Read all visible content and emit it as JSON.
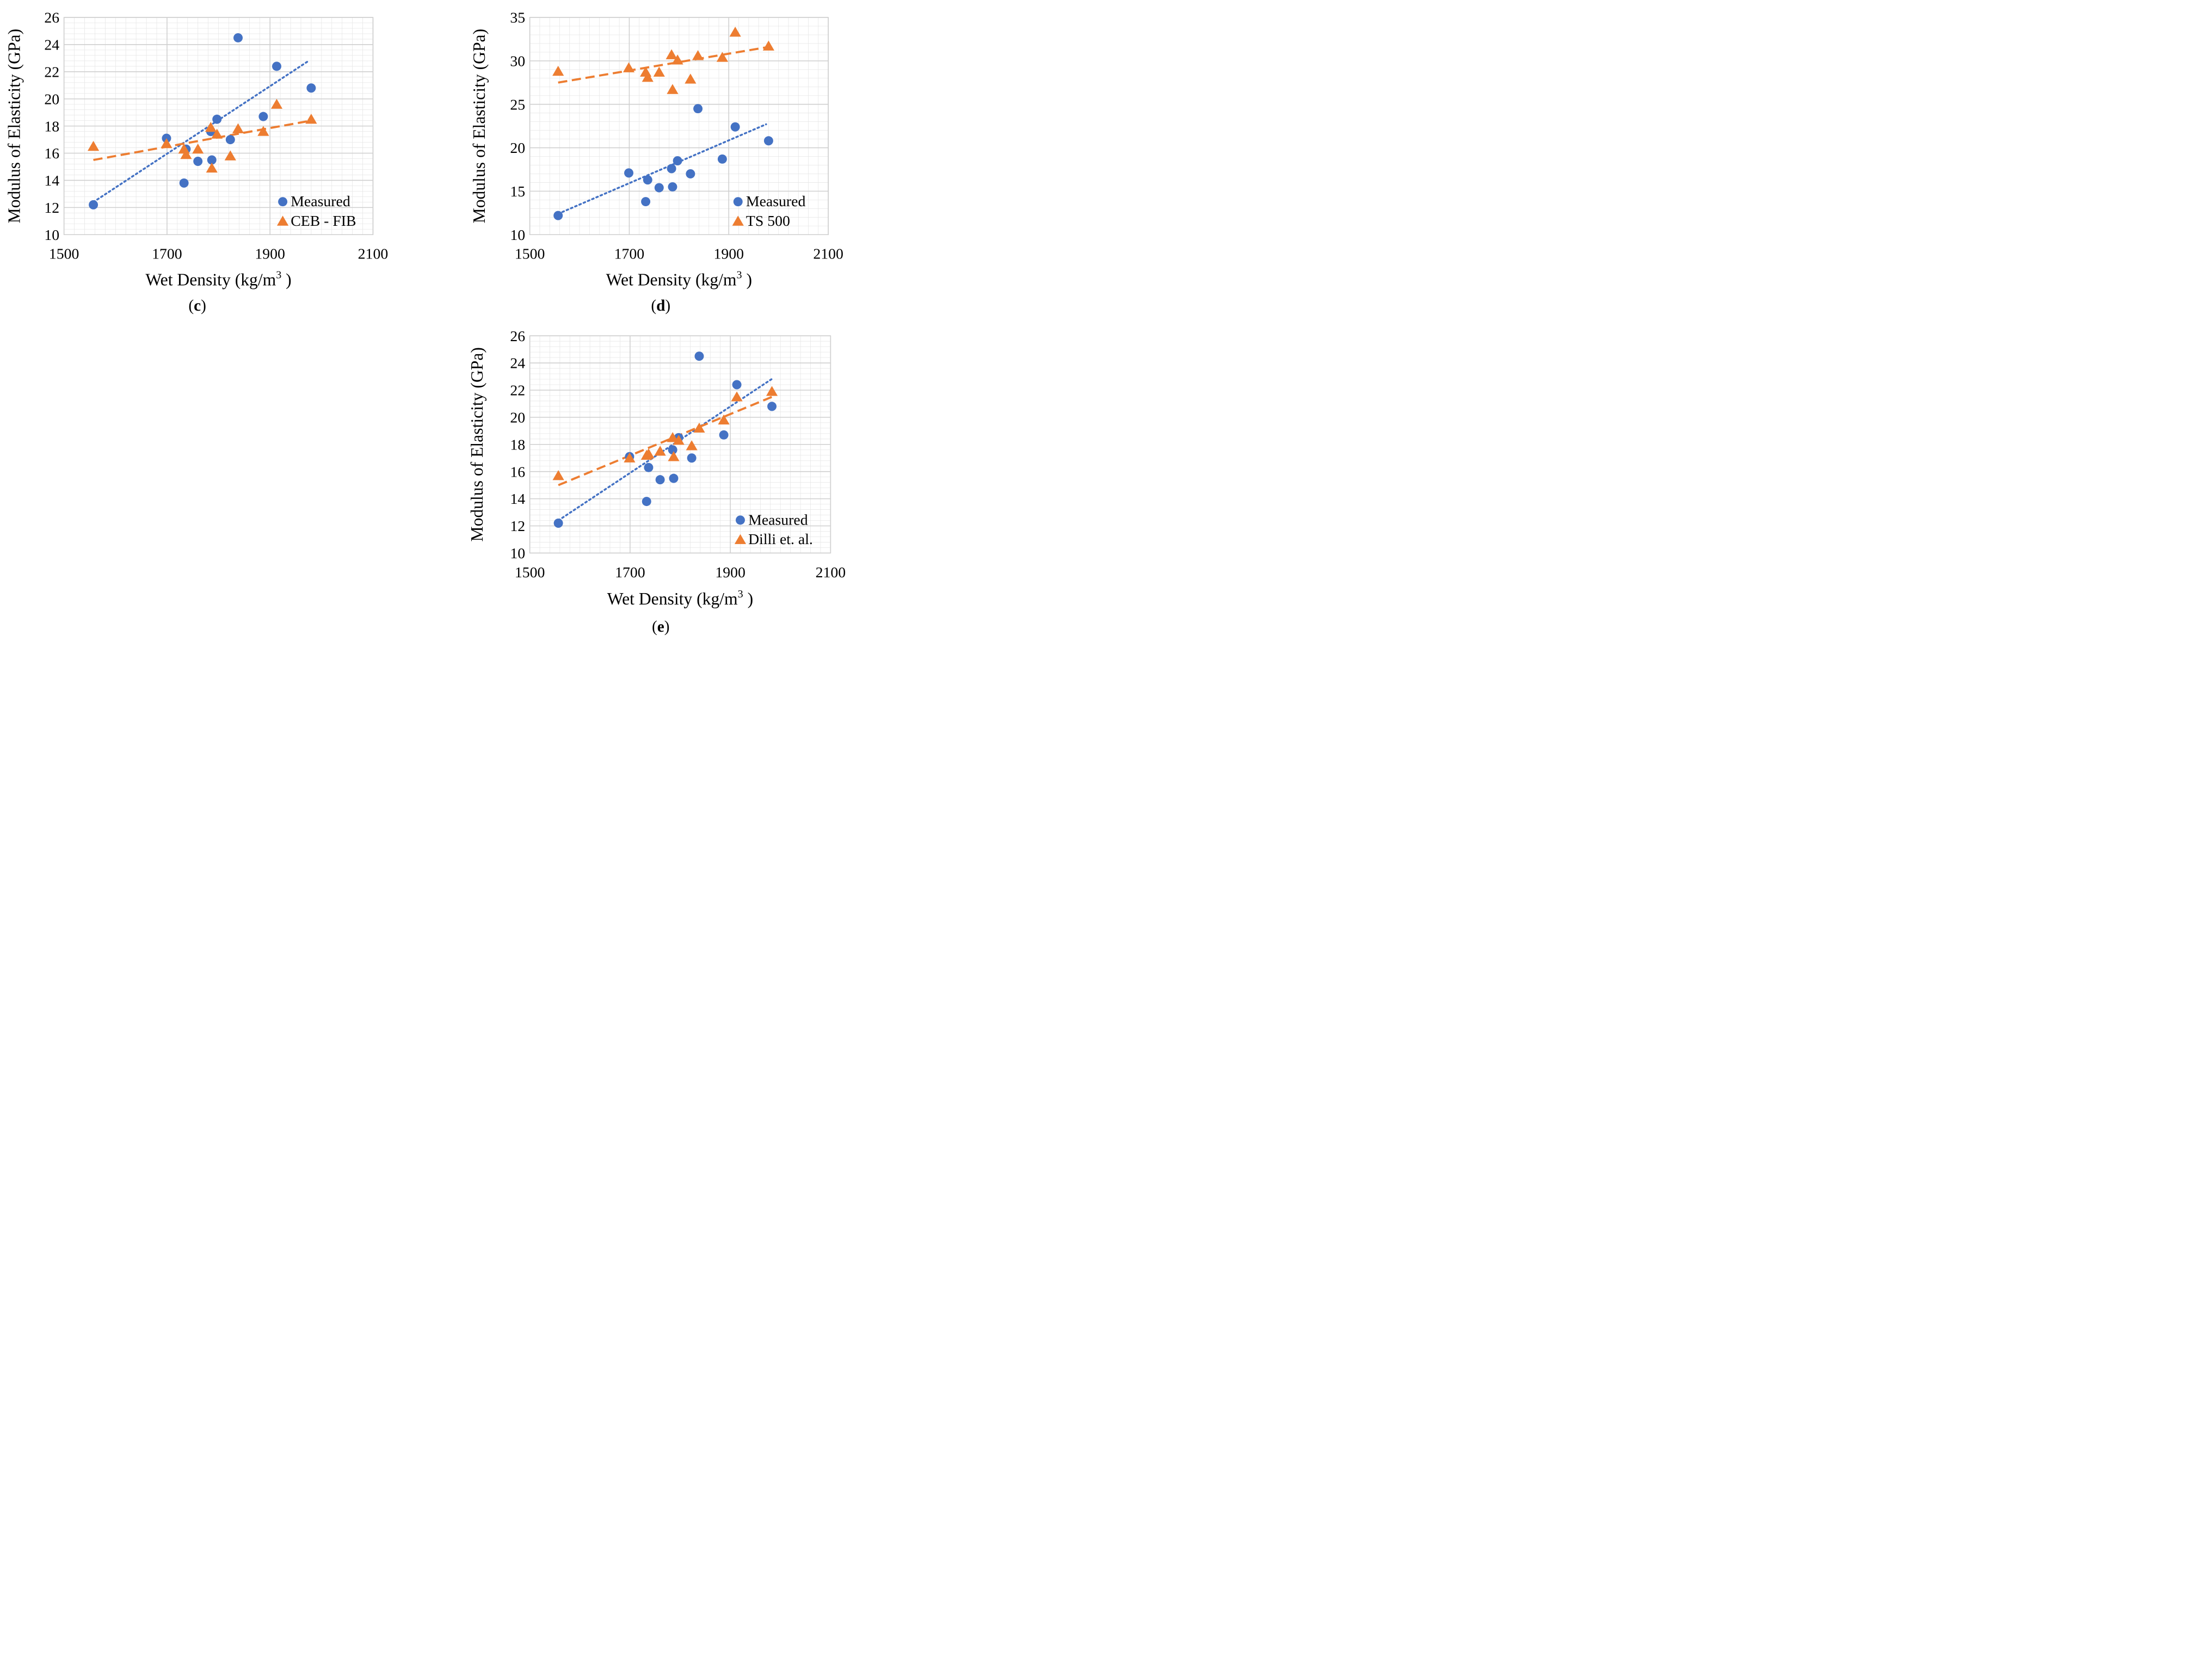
{
  "figure": {
    "panels_order": [
      "c",
      "d",
      "e"
    ]
  },
  "chart_data": [
    {
      "id": "c",
      "type": "scatter",
      "caption_prefix": "(",
      "caption_letter": "c",
      "caption_suffix": ")",
      "xlabel": "Wet Density (kg/m",
      "xlabel_sup": "3",
      "xlabel_close": " )",
      "ylabel": "Modulus of Elasticity (GPa)",
      "xlim": [
        1500,
        2100
      ],
      "ylim": [
        10,
        26
      ],
      "x_ticks": [
        1500,
        1700,
        1900,
        2100
      ],
      "y_ticks": [
        10,
        12,
        14,
        16,
        18,
        20,
        22,
        24,
        26
      ],
      "legend_position": "bottom-right",
      "series": [
        {
          "name": "Measured",
          "marker": "circle",
          "color": "#4472C4",
          "trend_style": "dotted",
          "points": [
            [
              1557,
              12.2
            ],
            [
              1699,
              17.1
            ],
            [
              1733,
              13.8
            ],
            [
              1737,
              16.3
            ],
            [
              1760,
              15.4
            ],
            [
              1785,
              17.6
            ],
            [
              1787,
              15.5
            ],
            [
              1797,
              18.5
            ],
            [
              1823,
              17.0
            ],
            [
              1838,
              24.5
            ],
            [
              1887,
              18.7
            ],
            [
              1913,
              22.4
            ],
            [
              1980,
              20.8
            ]
          ],
          "trend": [
            [
              1557,
              12.4
            ],
            [
              1975,
              22.8
            ]
          ]
        },
        {
          "name": "CEB - FIB",
          "marker": "triangle",
          "color": "#ED7D31",
          "trend_style": "dashed",
          "points": [
            [
              1557,
              16.5
            ],
            [
              1699,
              16.7
            ],
            [
              1733,
              16.3
            ],
            [
              1737,
              15.9
            ],
            [
              1760,
              16.3
            ],
            [
              1785,
              17.9
            ],
            [
              1787,
              14.9
            ],
            [
              1797,
              17.4
            ],
            [
              1823,
              15.8
            ],
            [
              1838,
              17.8
            ],
            [
              1887,
              17.6
            ],
            [
              1913,
              19.6
            ],
            [
              1980,
              18.5
            ]
          ],
          "trend": [
            [
              1557,
              15.5
            ],
            [
              1980,
              18.4
            ]
          ]
        }
      ]
    },
    {
      "id": "d",
      "type": "scatter",
      "caption_prefix": "(",
      "caption_letter": "d",
      "caption_suffix": ")",
      "xlabel": "Wet Density (kg/m",
      "xlabel_sup": "3",
      "xlabel_close": " )",
      "ylabel": "Modulus of Elasticity (GPa)",
      "xlim": [
        1500,
        2100
      ],
      "ylim": [
        10,
        35
      ],
      "x_ticks": [
        1500,
        1700,
        1900,
        2100
      ],
      "y_ticks": [
        10,
        15,
        20,
        25,
        30,
        35
      ],
      "legend_position": "bottom-right",
      "series": [
        {
          "name": "Measured",
          "marker": "circle",
          "color": "#4472C4",
          "trend_style": "dotted",
          "points": [
            [
              1557,
              12.2
            ],
            [
              1699,
              17.1
            ],
            [
              1733,
              13.8
            ],
            [
              1737,
              16.3
            ],
            [
              1760,
              15.4
            ],
            [
              1785,
              17.6
            ],
            [
              1787,
              15.5
            ],
            [
              1797,
              18.5
            ],
            [
              1823,
              17.0
            ],
            [
              1838,
              24.5
            ],
            [
              1887,
              18.7
            ],
            [
              1913,
              22.4
            ],
            [
              1980,
              20.8
            ]
          ],
          "trend": [
            [
              1557,
              12.4
            ],
            [
              1975,
              22.7
            ]
          ]
        },
        {
          "name": "TS 500",
          "marker": "triangle",
          "color": "#ED7D31",
          "trend_style": "dashed",
          "points": [
            [
              1557,
              28.8
            ],
            [
              1699,
              29.2
            ],
            [
              1733,
              28.7
            ],
            [
              1737,
              28.1
            ],
            [
              1760,
              28.7
            ],
            [
              1785,
              30.7
            ],
            [
              1787,
              26.7
            ],
            [
              1797,
              30.1
            ],
            [
              1823,
              27.9
            ],
            [
              1838,
              30.6
            ],
            [
              1887,
              30.4
            ],
            [
              1913,
              33.3
            ],
            [
              1980,
              31.7
            ]
          ],
          "trend": [
            [
              1557,
              27.5
            ],
            [
              1980,
              31.6
            ]
          ]
        }
      ]
    },
    {
      "id": "e",
      "type": "scatter",
      "caption_prefix": "(",
      "caption_letter": "e",
      "caption_suffix": ")",
      "xlabel": "Wet Density (kg/m",
      "xlabel_sup": "3",
      "xlabel_close": " )",
      "ylabel": "Modulus of Elasticity (GPa)",
      "xlim": [
        1500,
        2100
      ],
      "ylim": [
        10,
        26
      ],
      "x_ticks": [
        1500,
        1700,
        1900,
        2100
      ],
      "y_ticks": [
        10,
        12,
        14,
        16,
        18,
        20,
        22,
        24,
        26
      ],
      "legend_position": "bottom-right",
      "series": [
        {
          "name": "Measured",
          "marker": "circle",
          "color": "#4472C4",
          "trend_style": "dotted",
          "points": [
            [
              1557,
              12.2
            ],
            [
              1699,
              17.1
            ],
            [
              1733,
              13.8
            ],
            [
              1737,
              16.3
            ],
            [
              1760,
              15.4
            ],
            [
              1785,
              17.6
            ],
            [
              1787,
              15.5
            ],
            [
              1797,
              18.5
            ],
            [
              1823,
              17.0
            ],
            [
              1838,
              24.5
            ],
            [
              1887,
              18.7
            ],
            [
              1913,
              22.4
            ],
            [
              1983,
              20.8
            ]
          ],
          "trend": [
            [
              1557,
              12.4
            ],
            [
              1982,
              22.8
            ]
          ]
        },
        {
          "name": "Dilli et. al.",
          "marker": "triangle",
          "color": "#ED7D31",
          "trend_style": "dashed",
          "points": [
            [
              1557,
              15.7
            ],
            [
              1699,
              17.0
            ],
            [
              1733,
              17.2
            ],
            [
              1737,
              17.3
            ],
            [
              1760,
              17.5
            ],
            [
              1785,
              18.5
            ],
            [
              1787,
              17.1
            ],
            [
              1797,
              18.3
            ],
            [
              1823,
              17.9
            ],
            [
              1838,
              19.2
            ],
            [
              1887,
              19.8
            ],
            [
              1913,
              21.5
            ],
            [
              1983,
              21.9
            ]
          ],
          "trend": [
            [
              1557,
              15.0
            ],
            [
              1983,
              21.5
            ]
          ]
        }
      ]
    }
  ]
}
